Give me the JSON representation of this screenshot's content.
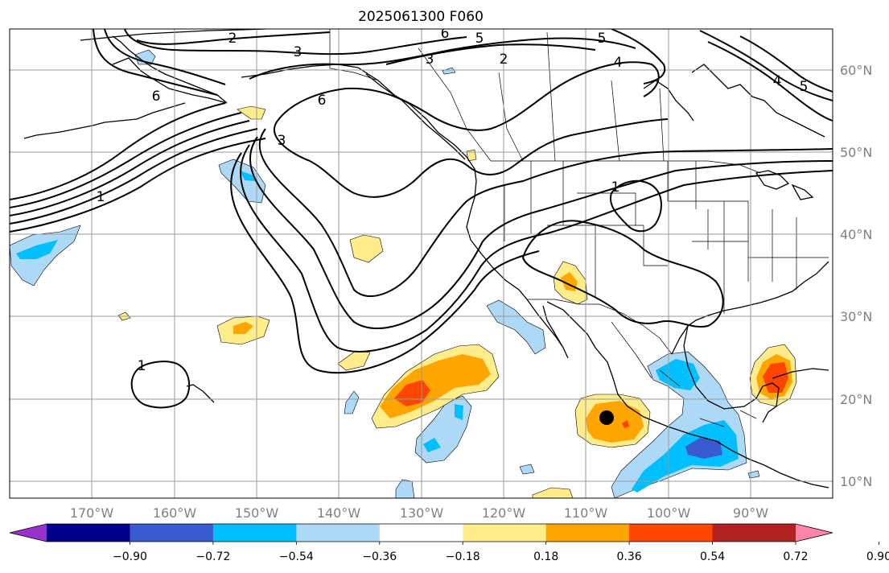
{
  "title": "2025061300 F060",
  "lon_labels": [
    "170°W",
    "160°W",
    "150°W",
    "140°W",
    "130°W",
    "120°W",
    "110°W",
    "100°W",
    "90°W"
  ],
  "lat_labels": [
    "60°N",
    "50°N",
    "40°N",
    "30°N",
    "20°N",
    "10°N"
  ],
  "contour_labels": [
    "2",
    "3",
    "6",
    "5",
    "5",
    "4",
    "3",
    "2",
    "6",
    "6",
    "5",
    "4",
    "3",
    "1",
    "1",
    "1"
  ],
  "colorbar": {
    "ticks": [
      "−0.90",
      "−0.72",
      "−0.54",
      "−0.36",
      "−0.18",
      "0.18",
      "0.36",
      "0.54",
      "0.72",
      "0.90"
    ],
    "colors": [
      "#9932cc",
      "#00008b",
      "#3a5bd0",
      "#00bfff",
      "#add8f6",
      "#ffffff",
      "#ffec8b",
      "#ffa500",
      "#ff4500",
      "#b22222",
      "#ff85a8"
    ]
  },
  "colors": {
    "light_blue": "#add8f6",
    "blue": "#00bfff",
    "royal_blue": "#3a5bd0",
    "yellow": "#ffec8b",
    "orange": "#ffa500",
    "red_orange": "#ff4500"
  }
}
